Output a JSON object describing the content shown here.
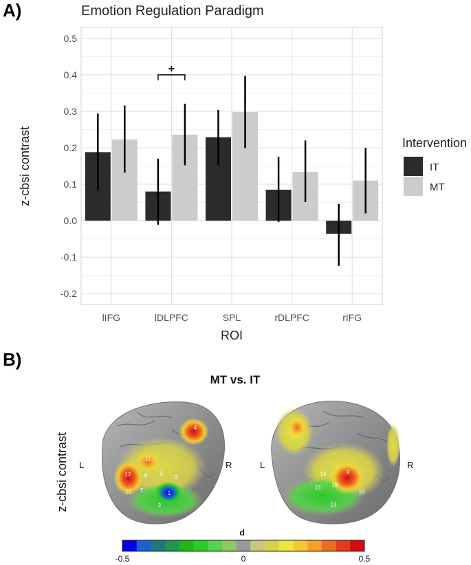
{
  "panels": {
    "a_label": "A)",
    "b_label": "B)"
  },
  "chart_data": {
    "type": "bar",
    "title": "Emotion Regulation Paradigm",
    "xlabel": "ROI",
    "ylabel": "z-cbsi contrast",
    "categories": [
      "lIFG",
      "lDLPFC",
      "SPL",
      "rDLPFC",
      "rIFG"
    ],
    "ylim": [
      -0.23,
      0.53
    ],
    "yticks": [
      -0.2,
      -0.1,
      0.0,
      0.1,
      0.2,
      0.3,
      0.4,
      0.5
    ],
    "ytick_labels": [
      "-0.2",
      "-0.1",
      "0.0",
      "0.1",
      "0.2",
      "0.3",
      "0.4",
      "0.5"
    ],
    "grid": true,
    "series": [
      {
        "name": "IT",
        "color": "#2b2b2b",
        "values": [
          0.188,
          0.08,
          0.229,
          0.085,
          -0.036
        ],
        "err_low": [
          0.083,
          -0.011,
          0.152,
          -0.004,
          -0.124
        ],
        "err_high": [
          0.294,
          0.17,
          0.304,
          0.175,
          0.046
        ]
      },
      {
        "name": "MT",
        "color": "#cccccc",
        "values": [
          0.223,
          0.236,
          0.298,
          0.134,
          0.11
        ],
        "err_low": [
          0.132,
          0.152,
          0.199,
          0.051,
          0.02
        ],
        "err_high": [
          0.316,
          0.321,
          0.397,
          0.22,
          0.2
        ]
      }
    ],
    "legend": {
      "title": "Intervention",
      "placement": "right"
    },
    "annotations": [
      {
        "text": "+",
        "category": "lDLPFC",
        "y": 0.4
      }
    ]
  },
  "brain": {
    "title": "MT vs. IT",
    "ylabel": "z-cbsi contrast",
    "left_hemisphere": {
      "left_label": "L",
      "right_label": "R",
      "channels": [
        "4",
        "11",
        "12",
        "10",
        "6",
        "5",
        "3",
        "7",
        "1",
        "2"
      ]
    },
    "right_hemisphere": {
      "left_label": "L",
      "right_label": "R",
      "channels": [
        "9",
        "14",
        "16",
        "15",
        "13",
        "18"
      ]
    },
    "colorbar": {
      "title": "d",
      "min_label": "-0.5",
      "mid_label": "0",
      "max_label": "0.5",
      "colors": [
        "#0000e6",
        "#1f5fd2",
        "#1e7a78",
        "#1e9650",
        "#21b41e",
        "#28cd28",
        "#55d24b",
        "#8cc864",
        "#999999",
        "#c8c878",
        "#d7d24b",
        "#ebe63c",
        "#f5c832",
        "#f5a028",
        "#eb6e1e",
        "#e13c1e",
        "#d70a14"
      ]
    }
  }
}
